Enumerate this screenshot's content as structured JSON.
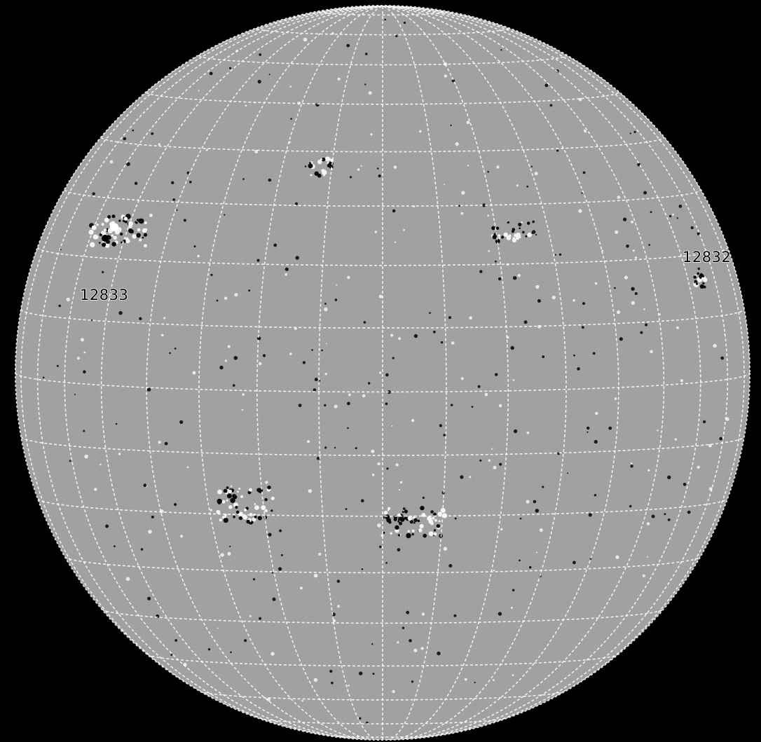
{
  "image": {
    "kind": "solar-magnetogram",
    "background_color": "#000000",
    "disk_color": "#808080",
    "grid_color": "#ffffff",
    "positive_polarity_color": "#ffffff",
    "negative_polarity_color": "#000000"
  },
  "grid": {
    "latitude_step_deg": 10,
    "longitude_step_deg": 10,
    "line_style": "dashed"
  },
  "regions": [
    {
      "id": "12833",
      "label": "12833"
    },
    {
      "id": "12832",
      "label": "12832"
    }
  ]
}
